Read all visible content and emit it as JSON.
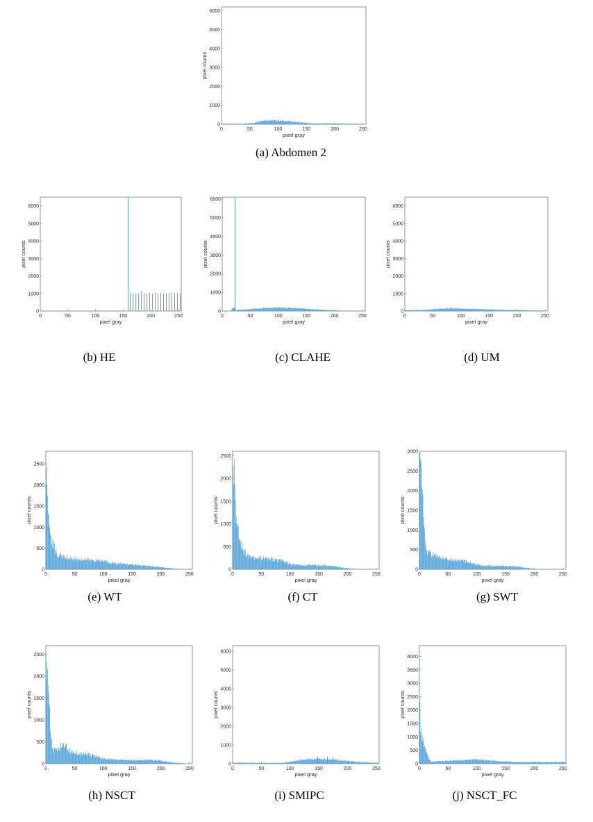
{
  "chart_data": [
    {
      "id": "a",
      "type": "bar",
      "caption": "(a) Abdomen 2",
      "xlabel": "pixel gray",
      "ylabel": "pixel counts",
      "xlim": [
        0,
        255
      ],
      "ylim": [
        0,
        6200
      ],
      "xticks": [
        0,
        50,
        100,
        150,
        200,
        250
      ],
      "yticks": [
        0,
        1000,
        2000,
        3000,
        4000,
        5000,
        6000
      ],
      "profile": [
        [
          0,
          40
        ],
        [
          20,
          30
        ],
        [
          40,
          25
        ],
        [
          55,
          60
        ],
        [
          65,
          150
        ],
        [
          75,
          220
        ],
        [
          90,
          210
        ],
        [
          105,
          190
        ],
        [
          120,
          160
        ],
        [
          135,
          110
        ],
        [
          150,
          60
        ],
        [
          165,
          40
        ],
        [
          190,
          50
        ],
        [
          210,
          40
        ],
        [
          230,
          30
        ],
        [
          255,
          20
        ]
      ],
      "spikes": []
    },
    {
      "id": "b",
      "type": "bar",
      "caption": "(b) HE",
      "xlabel": "pixel gray",
      "ylabel": "pixel counts",
      "xlim": [
        0,
        255
      ],
      "ylim": [
        0,
        6500
      ],
      "xticks": [
        0,
        50,
        100,
        150,
        200,
        250
      ],
      "yticks": [
        0,
        1000,
        2000,
        3000,
        4000,
        5000,
        6000
      ],
      "profile": [],
      "spikes": [
        [
          159,
          6500
        ],
        [
          163,
          1050
        ],
        [
          168,
          1000
        ],
        [
          173,
          1000
        ],
        [
          178,
          1000
        ],
        [
          183,
          1150
        ],
        [
          188,
          1050
        ],
        [
          193,
          1000
        ],
        [
          198,
          1050
        ],
        [
          203,
          1000
        ],
        [
          208,
          1050
        ],
        [
          213,
          1000
        ],
        [
          218,
          1050
        ],
        [
          223,
          1000
        ],
        [
          228,
          1000
        ],
        [
          233,
          1050
        ],
        [
          238,
          1050
        ],
        [
          243,
          1000
        ],
        [
          248,
          1050
        ],
        [
          253,
          1000
        ]
      ]
    },
    {
      "id": "c",
      "type": "bar",
      "caption": "(c) CLAHE",
      "xlabel": "pixel gray",
      "ylabel": "pixel counts",
      "xlim": [
        0,
        255
      ],
      "ylim": [
        0,
        6100
      ],
      "xticks": [
        0,
        50,
        100,
        150,
        200,
        250
      ],
      "yticks": [
        0,
        1000,
        2000,
        3000,
        4000,
        5000,
        6000
      ],
      "profile": [
        [
          15,
          0
        ],
        [
          18,
          150
        ],
        [
          21,
          250
        ],
        [
          24,
          50
        ],
        [
          40,
          80
        ],
        [
          60,
          120
        ],
        [
          80,
          170
        ],
        [
          100,
          180
        ],
        [
          120,
          170
        ],
        [
          140,
          140
        ],
        [
          160,
          100
        ],
        [
          180,
          70
        ],
        [
          200,
          30
        ],
        [
          220,
          10
        ],
        [
          240,
          0
        ]
      ],
      "spikes": [
        [
          23,
          6100
        ]
      ]
    },
    {
      "id": "d",
      "type": "bar",
      "caption": "(d) UM",
      "xlabel": "pixel gray",
      "ylabel": "pixel counts",
      "xlim": [
        0,
        255
      ],
      "ylim": [
        0,
        6500
      ],
      "xticks": [
        0,
        50,
        100,
        150,
        200,
        250
      ],
      "yticks": [
        0,
        1000,
        2000,
        3000,
        4000,
        5000,
        6000
      ],
      "profile": [
        [
          0,
          40
        ],
        [
          20,
          50
        ],
        [
          40,
          70
        ],
        [
          60,
          130
        ],
        [
          80,
          160
        ],
        [
          100,
          150
        ],
        [
          120,
          120
        ],
        [
          140,
          100
        ],
        [
          160,
          80
        ],
        [
          180,
          60
        ],
        [
          200,
          50
        ],
        [
          220,
          40
        ],
        [
          240,
          30
        ],
        [
          255,
          20
        ]
      ],
      "spikes": []
    },
    {
      "id": "e",
      "type": "bar",
      "caption": "(e) WT",
      "xlabel": "pixel gray",
      "ylabel": "pixel counts",
      "xlim": [
        0,
        255
      ],
      "ylim": [
        0,
        2800
      ],
      "xticks": [
        0,
        50,
        100,
        150,
        200,
        250
      ],
      "yticks": [
        0,
        500,
        1000,
        1500,
        2000,
        2500
      ],
      "profile": [
        [
          0,
          2800
        ],
        [
          2,
          2000
        ],
        [
          5,
          1200
        ],
        [
          10,
          700
        ],
        [
          15,
          500
        ],
        [
          20,
          350
        ],
        [
          30,
          300
        ],
        [
          50,
          250
        ],
        [
          80,
          220
        ],
        [
          100,
          200
        ],
        [
          120,
          150
        ],
        [
          150,
          110
        ],
        [
          180,
          80
        ],
        [
          200,
          50
        ],
        [
          220,
          20
        ],
        [
          240,
          5
        ],
        [
          255,
          0
        ]
      ],
      "spikes": []
    },
    {
      "id": "f",
      "type": "bar",
      "caption": "(f) CT",
      "xlabel": "pixel gray",
      "ylabel": "pixel counts",
      "xlim": [
        0,
        255
      ],
      "ylim": [
        0,
        2600
      ],
      "xticks": [
        0,
        50,
        100,
        150,
        200,
        250
      ],
      "yticks": [
        0,
        500,
        1000,
        1500,
        2000,
        2500
      ],
      "profile": [
        [
          0,
          2600
        ],
        [
          3,
          2000
        ],
        [
          6,
          1200
        ],
        [
          10,
          850
        ],
        [
          15,
          600
        ],
        [
          20,
          400
        ],
        [
          30,
          280
        ],
        [
          50,
          250
        ],
        [
          70,
          220
        ],
        [
          90,
          180
        ],
        [
          100,
          120
        ],
        [
          120,
          90
        ],
        [
          140,
          100
        ],
        [
          160,
          90
        ],
        [
          180,
          60
        ],
        [
          200,
          20
        ],
        [
          220,
          5
        ],
        [
          255,
          0
        ]
      ],
      "spikes": []
    },
    {
      "id": "g",
      "type": "bar",
      "caption": "(g) SWT",
      "xlabel": "pixel gray",
      "ylabel": "pixel counts",
      "xlim": [
        0,
        255
      ],
      "ylim": [
        0,
        3000
      ],
      "xticks": [
        0,
        50,
        100,
        150,
        200,
        250
      ],
      "yticks": [
        0,
        500,
        1000,
        1500,
        2000,
        2500,
        3000
      ],
      "profile": [
        [
          0,
          3000
        ],
        [
          3,
          2500
        ],
        [
          6,
          2000
        ],
        [
          9,
          1000
        ],
        [
          12,
          450
        ],
        [
          20,
          400
        ],
        [
          30,
          330
        ],
        [
          50,
          260
        ],
        [
          70,
          230
        ],
        [
          90,
          170
        ],
        [
          100,
          120
        ],
        [
          120,
          90
        ],
        [
          140,
          85
        ],
        [
          160,
          80
        ],
        [
          175,
          60
        ],
        [
          200,
          10
        ],
        [
          220,
          0
        ],
        [
          255,
          0
        ]
      ],
      "spikes": []
    },
    {
      "id": "h",
      "type": "bar",
      "caption": "(h) NSCT",
      "xlabel": "pixel gray",
      "ylabel": "pixel counts",
      "xlim": [
        0,
        255
      ],
      "ylim": [
        0,
        2700
      ],
      "xticks": [
        0,
        50,
        100,
        150,
        200,
        250
      ],
      "yticks": [
        0,
        500,
        1000,
        1500,
        2000,
        2500
      ],
      "profile": [
        [
          0,
          2700
        ],
        [
          3,
          2000
        ],
        [
          6,
          1500
        ],
        [
          9,
          600
        ],
        [
          12,
          300
        ],
        [
          20,
          320
        ],
        [
          28,
          420
        ],
        [
          33,
          450
        ],
        [
          40,
          300
        ],
        [
          60,
          220
        ],
        [
          80,
          200
        ],
        [
          100,
          120
        ],
        [
          120,
          90
        ],
        [
          140,
          80
        ],
        [
          160,
          80
        ],
        [
          180,
          90
        ],
        [
          200,
          70
        ],
        [
          220,
          30
        ],
        [
          240,
          10
        ],
        [
          255,
          0
        ]
      ],
      "spikes": []
    },
    {
      "id": "i",
      "type": "bar",
      "caption": "(i) SMIPC",
      "xlabel": "pixel gray",
      "ylabel": "pixel counts",
      "xlim": [
        0,
        255
      ],
      "ylim": [
        0,
        6300
      ],
      "xticks": [
        0,
        50,
        100,
        150,
        200,
        250
      ],
      "yticks": [
        0,
        1000,
        2000,
        3000,
        4000,
        5000,
        6000
      ],
      "profile": [
        [
          0,
          60
        ],
        [
          30,
          50
        ],
        [
          60,
          40
        ],
        [
          90,
          50
        ],
        [
          110,
          150
        ],
        [
          125,
          230
        ],
        [
          140,
          250
        ],
        [
          160,
          260
        ],
        [
          180,
          200
        ],
        [
          200,
          150
        ],
        [
          220,
          100
        ],
        [
          240,
          60
        ],
        [
          255,
          40
        ]
      ],
      "spikes": [
        [
          148,
          400
        ],
        [
          165,
          380
        ],
        [
          175,
          350
        ]
      ]
    },
    {
      "id": "j",
      "type": "bar",
      "caption": "(j) NSCT_FC",
      "xlabel": "pixel gray",
      "ylabel": "pixel counts",
      "xlim": [
        0,
        255
      ],
      "ylim": [
        0,
        4400
      ],
      "xticks": [
        0,
        50,
        100,
        150,
        200,
        250
      ],
      "yticks": [
        0,
        500,
        1000,
        1500,
        2000,
        2500,
        3000,
        3500,
        4000
      ],
      "profile": [
        [
          0,
          4400
        ],
        [
          2,
          1200
        ],
        [
          5,
          900
        ],
        [
          10,
          600
        ],
        [
          15,
          250
        ],
        [
          20,
          80
        ],
        [
          40,
          100
        ],
        [
          60,
          120
        ],
        [
          80,
          140
        ],
        [
          100,
          150
        ],
        [
          120,
          130
        ],
        [
          140,
          90
        ],
        [
          160,
          70
        ],
        [
          180,
          60
        ],
        [
          200,
          60
        ],
        [
          220,
          60
        ],
        [
          240,
          60
        ],
        [
          255,
          60
        ]
      ],
      "spikes": []
    }
  ]
}
